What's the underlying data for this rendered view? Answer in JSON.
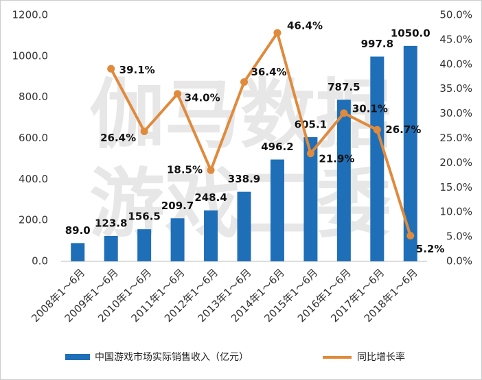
{
  "chart_data": {
    "type": "bar_line",
    "watermarks": [
      "伽马数据",
      "游戏工委"
    ],
    "categories": [
      "2008年1～6月",
      "2009年1～6月",
      "2010年1～6月",
      "2011年1～6月",
      "2012年1～6月",
      "2013年1～6月",
      "2014年1～6月",
      "2015年1～6月",
      "2016年1～6月",
      "2017年1～6月",
      "2018年1～6月"
    ],
    "series": [
      {
        "name": "中国游戏市场实际销售收入（亿元）",
        "type": "bar",
        "color": "#1f6fb8",
        "values": [
          89.0,
          123.8,
          156.5,
          209.7,
          248.4,
          338.9,
          496.2,
          605.1,
          787.5,
          997.8,
          1050.0
        ],
        "value_labels": [
          "89.0",
          "123.8",
          "156.5",
          "209.7",
          "248.4",
          "338.9",
          "496.2",
          "605.1",
          "787.5",
          "997.8",
          "1050.0"
        ]
      },
      {
        "name": "同比增长率",
        "type": "line",
        "axis": "y2",
        "color": "#e08a3c",
        "values": [
          null,
          39.1,
          26.4,
          34.0,
          18.5,
          36.4,
          46.4,
          21.9,
          30.1,
          26.7,
          5.2
        ],
        "value_labels": [
          null,
          "39.1%",
          "26.4%",
          "34.0%",
          "18.5%",
          "36.4%",
          "46.4%",
          "21.9%",
          "30.1%",
          "26.7%",
          "5.2%"
        ]
      }
    ],
    "ylim": [
      0,
      1200
    ],
    "yticks": [
      {
        "value": 0,
        "label": "0.0"
      },
      {
        "value": 200,
        "label": "200.0"
      },
      {
        "value": 400,
        "label": "400.0"
      },
      {
        "value": 600,
        "label": "600.0"
      },
      {
        "value": 800,
        "label": "800.0"
      },
      {
        "value": 1000,
        "label": "1000.0"
      },
      {
        "value": 1200,
        "label": "1200.0"
      }
    ],
    "y2lim": [
      0,
      50
    ],
    "y2ticks": [
      {
        "value": 0,
        "label": "0.0%"
      },
      {
        "value": 5,
        "label": "5.0%"
      },
      {
        "value": 10,
        "label": "10.0%"
      },
      {
        "value": 15,
        "label": "15.0%"
      },
      {
        "value": 20,
        "label": "20.0%"
      },
      {
        "value": 25,
        "label": "25.0%"
      },
      {
        "value": 30,
        "label": "30.0%"
      },
      {
        "value": 35,
        "label": "35.0%"
      },
      {
        "value": 40,
        "label": "40.0%"
      },
      {
        "value": 45,
        "label": "45.0%"
      },
      {
        "value": 50,
        "label": "50.0%"
      }
    ],
    "legend": "bottom"
  }
}
